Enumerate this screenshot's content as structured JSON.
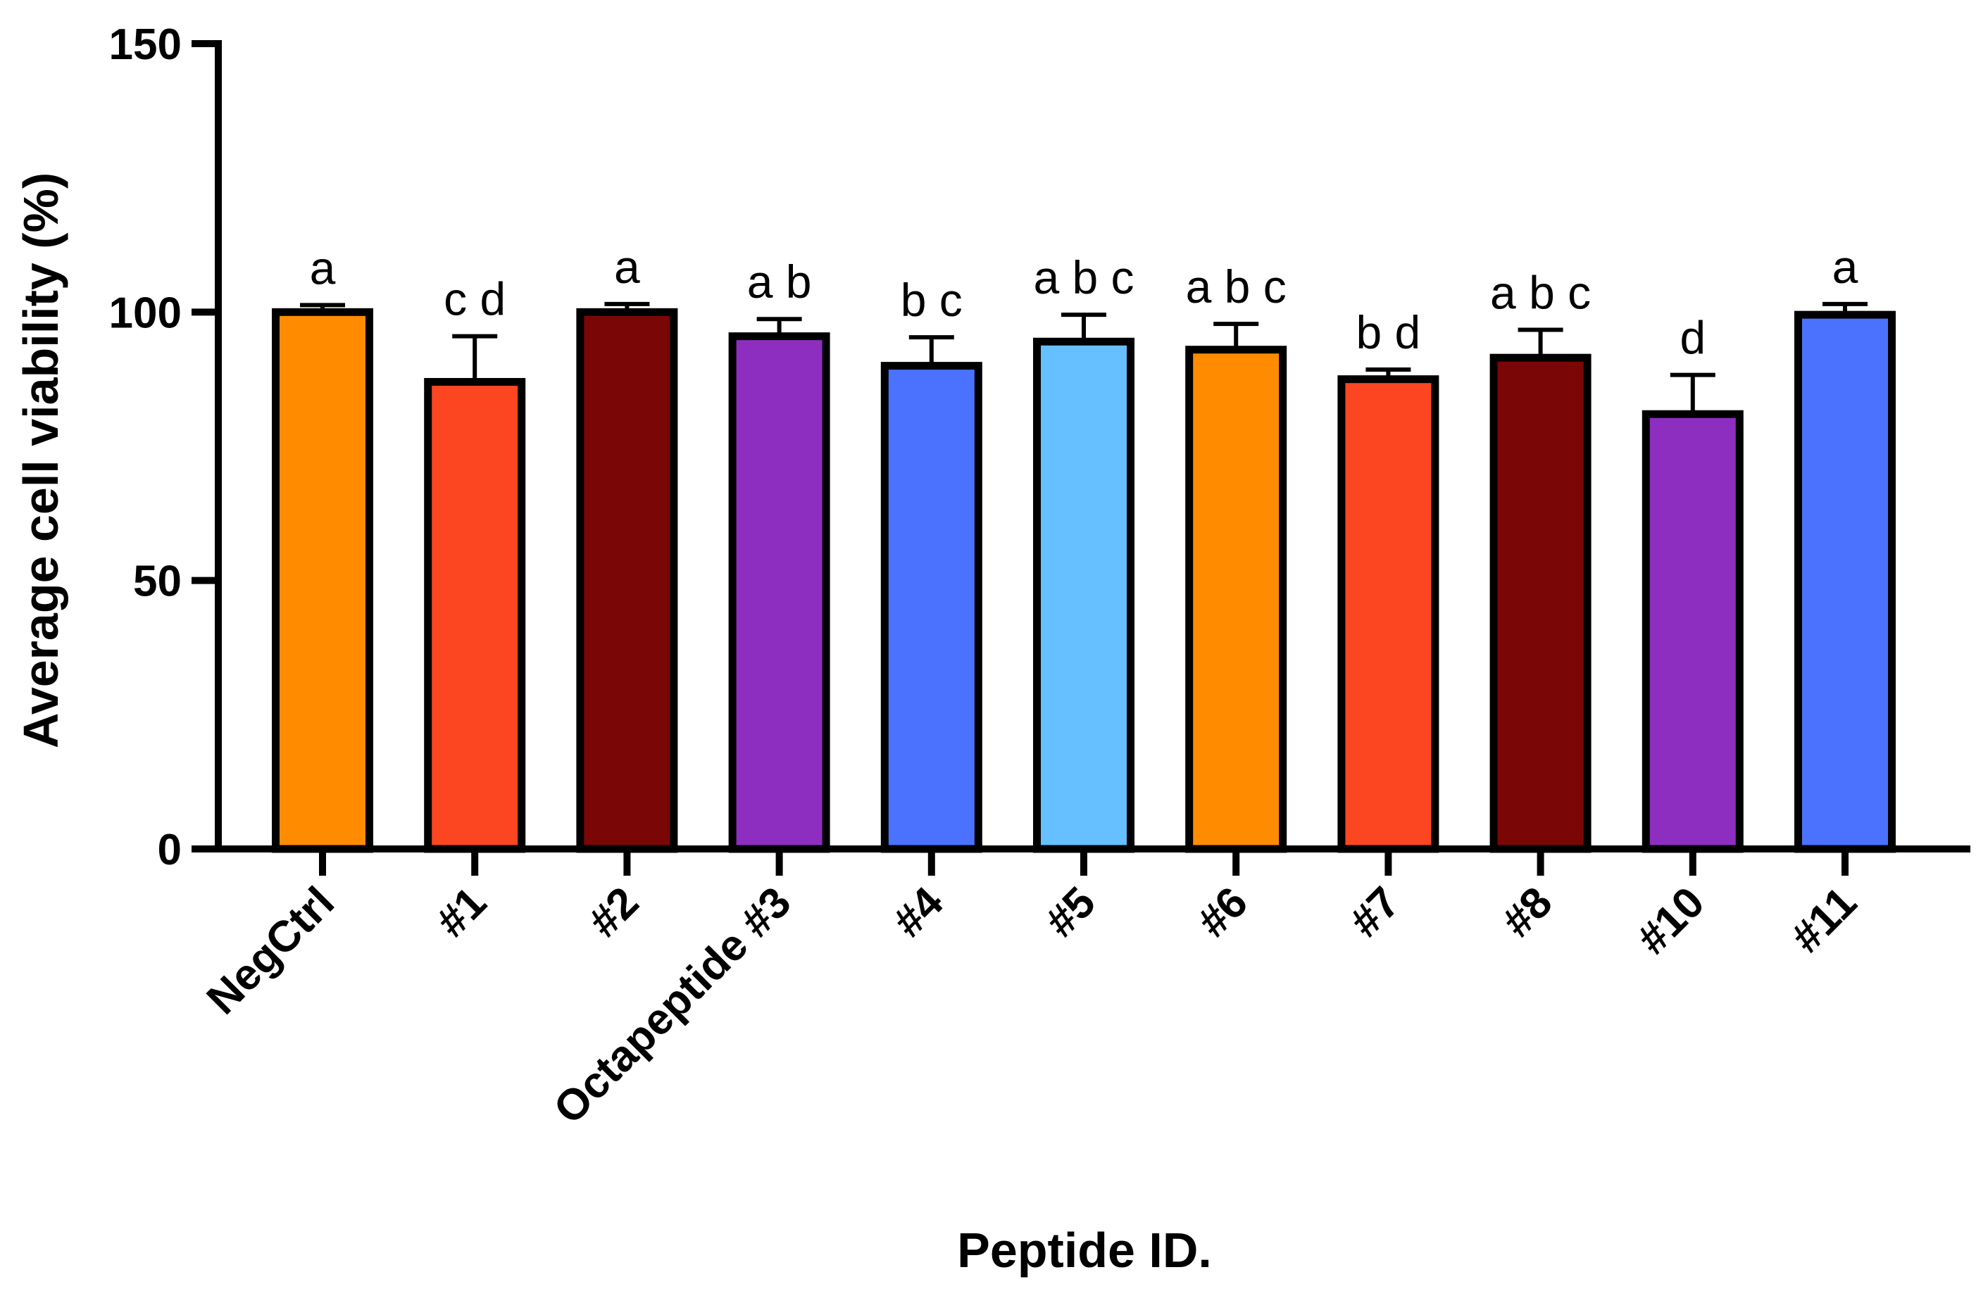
{
  "chart_data": {
    "type": "bar",
    "xlabel": "Peptide ID.",
    "ylabel": "Average cell viability (%)",
    "ylim": [
      0,
      150
    ],
    "yticks": [
      "0",
      "50",
      "100",
      "150"
    ],
    "grid": false,
    "legend": "none",
    "categories": [
      "NegCtrl",
      "#1",
      "#2",
      "Octapeptide #3",
      "#4",
      "#5",
      "#6",
      "#7",
      "#8",
      "#10",
      "#11"
    ],
    "values": [
      100,
      87,
      100,
      95.5,
      90,
      94.5,
      93,
      87.5,
      91.5,
      81,
      99.5
    ],
    "error": [
      1.3,
      8.5,
      1.5,
      3.2,
      5.3,
      5.0,
      4.8,
      1.8,
      5.2,
      7.3,
      2.0
    ],
    "significance": [
      "a",
      "c d",
      "a",
      "a b",
      "b c",
      "a b c",
      "a b c",
      "b d",
      "a b c",
      "d",
      "a"
    ],
    "colors": [
      "#FF8C00",
      "#FC4621",
      "#7B0606",
      "#8E2EC0",
      "#4A72FF",
      "#66BFFF",
      "#FF8C00",
      "#FC4621",
      "#7B0606",
      "#8E2EC0",
      "#4A72FF"
    ]
  }
}
